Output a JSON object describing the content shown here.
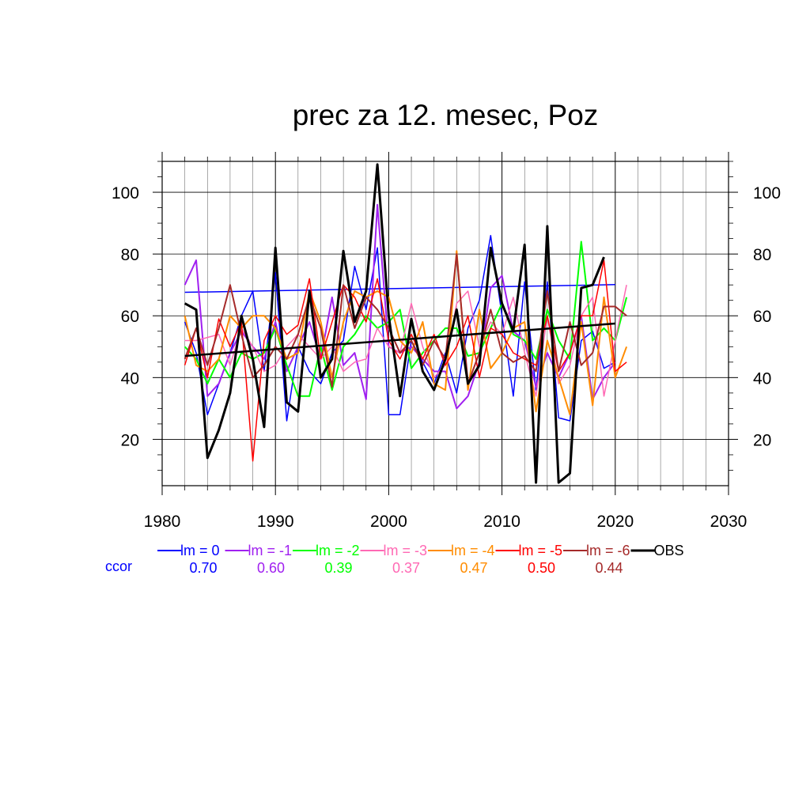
{
  "chart_data": {
    "type": "line",
    "title": "prec za 12. mesec, Poz",
    "xlabel": "",
    "ylabel": "",
    "xlim": [
      1980,
      2030
    ],
    "ylim": [
      5,
      110
    ],
    "x_ticks": [
      "1980",
      "1990",
      "2000",
      "2010",
      "2020",
      "2030"
    ],
    "y_ticks": [
      "20",
      "40",
      "60",
      "80",
      "100"
    ],
    "grid": true,
    "legend_position": "bottom",
    "ccor_label": "ccor",
    "x": [
      1982,
      1983,
      1984,
      1985,
      1986,
      1987,
      1988,
      1989,
      1990,
      1991,
      1992,
      1993,
      1994,
      1995,
      1996,
      1997,
      1998,
      1999,
      2000,
      2001,
      2002,
      2003,
      2004,
      2005,
      2006,
      2007,
      2008,
      2009,
      2010,
      2011,
      2012,
      2013,
      2014,
      2015,
      2016,
      2017,
      2018,
      2019,
      2020,
      2021
    ],
    "series": [
      {
        "name": "lm = 0",
        "ccor": "0.70",
        "color": "#0000ff",
        "width": 1.5,
        "values": [
          58,
          48,
          28,
          38,
          48,
          60,
          68,
          42,
          74,
          26,
          50,
          42,
          38,
          48,
          52,
          76,
          62,
          82,
          28,
          28,
          52,
          45,
          38,
          48,
          35,
          56,
          65,
          86,
          60,
          34,
          71,
          36,
          71,
          27,
          26,
          52,
          55,
          43,
          45,
          null
        ],
        "trend": [
          67.6,
          70.1
        ]
      },
      {
        "name": "lm = -1",
        "ccor": "0.60",
        "color": "#a020f0",
        "width": 2,
        "values": [
          70,
          78,
          34,
          38,
          48,
          55,
          50,
          46,
          58,
          42,
          50,
          58,
          46,
          66,
          44,
          48,
          33,
          96,
          50,
          48,
          50,
          46,
          42,
          42,
          30,
          34,
          45,
          69,
          73,
          55,
          52,
          37,
          48,
          40,
          48,
          60,
          33,
          40,
          45,
          null
        ],
        "trend": null
      },
      {
        "name": "lm = -2",
        "ccor": "0.39",
        "color": "#00ff00",
        "width": 2,
        "values": [
          50,
          46,
          38,
          46,
          40,
          48,
          46,
          48,
          56,
          44,
          34,
          34,
          50,
          36,
          50,
          54,
          60,
          56,
          58,
          62,
          43,
          48,
          52,
          56,
          56,
          47,
          48,
          56,
          64,
          54,
          52,
          46,
          62,
          52,
          46,
          84,
          52,
          56,
          52,
          66
        ],
        "trend": null
      },
      {
        "name": "lm = -3",
        "ccor": "0.37",
        "color": "#ff69b4",
        "width": 1.5,
        "values": [
          52,
          52,
          53,
          54,
          44,
          56,
          50,
          42,
          44,
          50,
          54,
          50,
          46,
          50,
          42,
          45,
          46,
          56,
          50,
          48,
          64,
          50,
          40,
          44,
          64,
          68,
          50,
          58,
          54,
          66,
          48,
          34,
          60,
          38,
          44,
          60,
          66,
          34,
          52,
          70
        ],
        "trend": null
      },
      {
        "name": "lm = -4",
        "ccor": "0.47",
        "color": "#ff8c00",
        "width": 2,
        "values": [
          60,
          44,
          42,
          46,
          60,
          56,
          60,
          60,
          56,
          46,
          48,
          68,
          58,
          40,
          58,
          68,
          66,
          68,
          66,
          52,
          48,
          58,
          38,
          36,
          81,
          36,
          62,
          43,
          48,
          56,
          58,
          29,
          52,
          40,
          28,
          58,
          31,
          66,
          40,
          50
        ],
        "trend": null
      },
      {
        "name": "lm = -5",
        "ccor": "0.50",
        "color": "#ff0000",
        "width": 1.5,
        "values": [
          44,
          56,
          40,
          59,
          50,
          58,
          13,
          52,
          60,
          54,
          57,
          72,
          46,
          58,
          70,
          66,
          58,
          72,
          52,
          46,
          54,
          46,
          54,
          44,
          50,
          60,
          40,
          56,
          54,
          48,
          46,
          44,
          60,
          42,
          48,
          60,
          60,
          78,
          42,
          45
        ],
        "trend": null
      },
      {
        "name": "lm = -6",
        "ccor": "0.44",
        "color": "#a52a2a",
        "width": 2,
        "values": [
          46,
          56,
          44,
          56,
          70,
          54,
          40,
          44,
          50,
          46,
          54,
          66,
          56,
          37,
          70,
          56,
          66,
          62,
          56,
          48,
          52,
          44,
          52,
          46,
          80,
          38,
          48,
          62,
          48,
          45,
          47,
          42,
          68,
          42,
          58,
          44,
          48,
          63,
          63,
          60
        ],
        "trend": null
      },
      {
        "name": "OBS",
        "ccor": "",
        "color": "#000000",
        "width": 3,
        "values": [
          64,
          62,
          14,
          23,
          35,
          60,
          46,
          24,
          82,
          32,
          29,
          68,
          40,
          46,
          81,
          58,
          68,
          109,
          60,
          34,
          59,
          42,
          36,
          46,
          62,
          38,
          44,
          82,
          64,
          55,
          83,
          6,
          89,
          6,
          9,
          69,
          70,
          79,
          null,
          null
        ],
        "trend": [
          47.0,
          57.5
        ]
      }
    ]
  }
}
